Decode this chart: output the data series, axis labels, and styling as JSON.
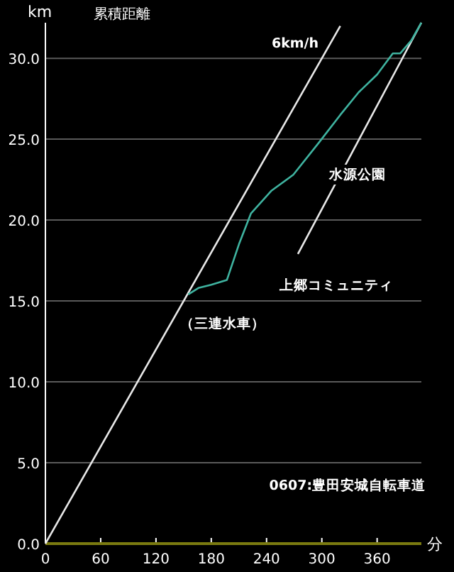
{
  "chart_data": {
    "type": "line",
    "title": "累積距離",
    "xlabel": "分",
    "ylabel": "km",
    "xlim": [
      0,
      408
    ],
    "ylim": [
      0,
      32.2
    ],
    "xticks": [
      0,
      60,
      120,
      180,
      240,
      300,
      360
    ],
    "yticks": [
      {
        "value": 0,
        "label": "0.0"
      },
      {
        "value": 5,
        "label": "5.0"
      },
      {
        "value": 10,
        "label": "10.0"
      },
      {
        "value": 15,
        "label": "15.0"
      },
      {
        "value": 20,
        "label": "20.0"
      },
      {
        "value": 25,
        "label": "25.0"
      },
      {
        "value": 30,
        "label": "30.0"
      }
    ],
    "grid": "y",
    "series": [
      {
        "color": "#e8e8e8",
        "x": [
          0,
          320
        ],
        "values": [
          0,
          32
        ]
      },
      {
        "color": "#e8e8e8",
        "x": [
          274,
          408
        ],
        "values": [
          17.9,
          32.2
        ]
      },
      {
        "color": "#3fb3a0",
        "x": [
          155,
          166,
          180,
          197,
          210,
          223,
          245,
          269,
          297,
          320,
          340,
          360,
          377,
          385,
          397,
          408
        ],
        "values": [
          15.4,
          15.8,
          16.0,
          16.3,
          18.5,
          20.4,
          21.8,
          22.8,
          24.8,
          26.5,
          27.9,
          29.0,
          30.3,
          30.3,
          31.1,
          32.2
        ]
      }
    ],
    "annotations": [
      {
        "text": "6km/h",
        "x": 271,
        "y": 31.0
      },
      "水源公園",
      "上郷コミュニティ",
      "（三連水車）",
      "0607:豊田安城自転車道"
    ]
  }
}
